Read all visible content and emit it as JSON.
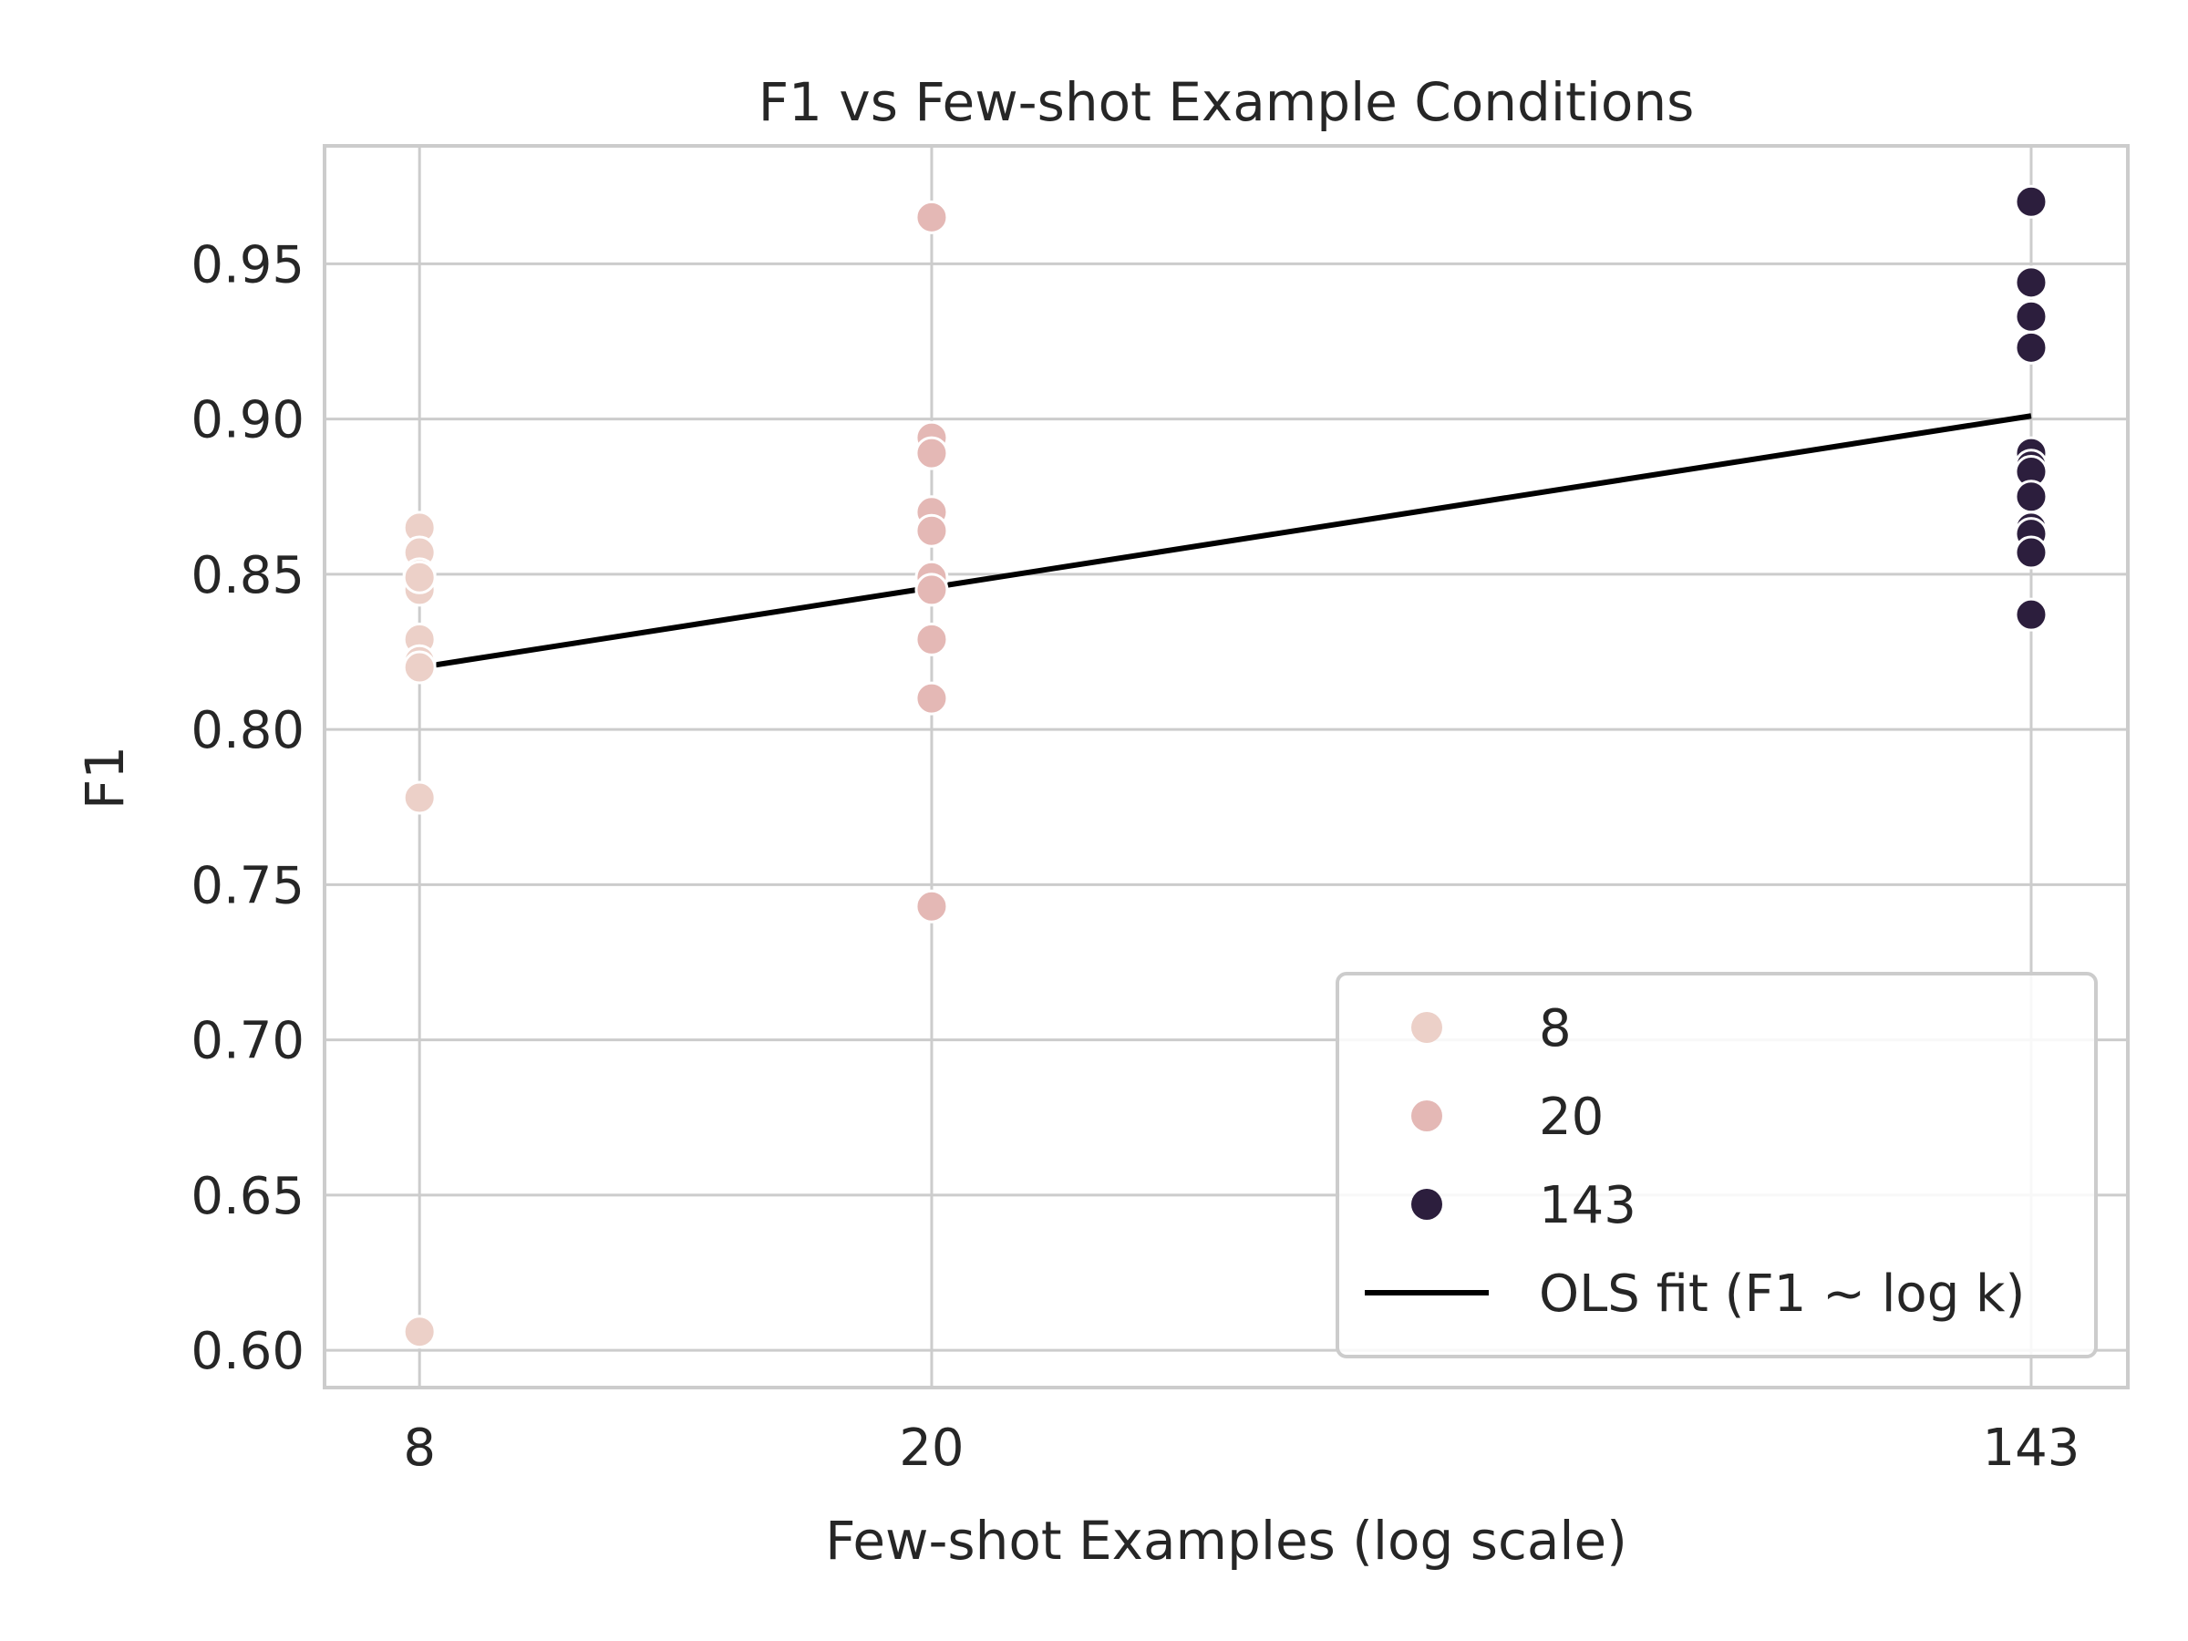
{
  "chart_data": {
    "type": "scatter",
    "title": "F1 vs Few-shot Example Conditions",
    "xlabel": "Few-shot Examples (log scale)",
    "ylabel": "F1",
    "x_scale": "log",
    "x_ticks": [
      8,
      20,
      143
    ],
    "x_tick_labels": [
      "8",
      "20",
      "143"
    ],
    "y_ticks": [
      0.6,
      0.65,
      0.7,
      0.75,
      0.8,
      0.85,
      0.9,
      0.95
    ],
    "y_tick_labels": [
      "0.60",
      "0.65",
      "0.70",
      "0.75",
      "0.80",
      "0.85",
      "0.90",
      "0.95"
    ],
    "xlim": [
      6.75,
      170
    ],
    "ylim": [
      0.588,
      0.988
    ],
    "grid": true,
    "legend_position": "lower-right",
    "series": [
      {
        "name": "8",
        "color": "#ecd0c8",
        "x": [
          8,
          8,
          8,
          8,
          8,
          8,
          8,
          8,
          8,
          8
        ],
        "y": [
          0.865,
          0.857,
          0.85,
          0.845,
          0.849,
          0.829,
          0.822,
          0.82,
          0.778,
          0.606
        ]
      },
      {
        "name": "20",
        "color": "#e4b8b5",
        "x": [
          20,
          20,
          20,
          20,
          20,
          20,
          20,
          20,
          20,
          20
        ],
        "y": [
          0.965,
          0.894,
          0.889,
          0.87,
          0.864,
          0.849,
          0.845,
          0.829,
          0.81,
          0.743
        ]
      },
      {
        "name": "143",
        "color": "#2c1e3d",
        "x": [
          143,
          143,
          143,
          143,
          143,
          143,
          143,
          143,
          143,
          143,
          143,
          143
        ],
        "y": [
          0.97,
          0.944,
          0.933,
          0.923,
          0.889,
          0.885,
          0.883,
          0.875,
          0.865,
          0.863,
          0.857,
          0.837
        ]
      }
    ],
    "fit_line": {
      "name": "OLS fit (F1 ~ log k)",
      "color": "#000000",
      "x": [
        8,
        143
      ],
      "y": [
        0.82,
        0.901
      ]
    }
  }
}
